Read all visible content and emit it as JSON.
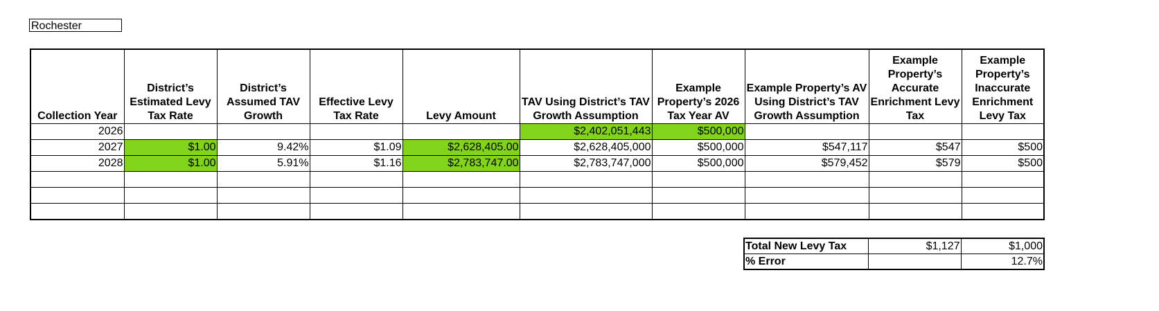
{
  "district_name": "Rochester",
  "fill_color": "#81d41a",
  "headers": [
    "Collection Year",
    "District’s Estimated Levy Tax Rate",
    "District’s Assumed TAV Growth",
    "Effective Levy Tax Rate",
    "Levy Amount",
    "TAV Using District’s TAV Growth Assumption",
    "Example Property’s 2026 Tax Year AV",
    "Example Property’s AV Using District’s TAV Growth Assumption",
    "Example Property’s Accurate Enrichment Levy Tax",
    "Example Property’s Inaccurate Enrichment Levy Tax"
  ],
  "rows": [
    [
      "2026",
      "",
      "",
      "",
      "",
      "$2,402,051,443",
      "$500,000",
      "",
      "",
      ""
    ],
    [
      "2027",
      "$1.00",
      "9.42%",
      "$1.09",
      "$2,628,405.00",
      "$2,628,405,000",
      "$500,000",
      "$547,117",
      "$547",
      "$500"
    ],
    [
      "2028",
      "$1.00",
      "5.91%",
      "$1.16",
      "$2,783,747.00",
      "$2,783,747,000",
      "$500,000",
      "$579,452",
      "$579",
      "$500"
    ],
    [
      "",
      "",
      "",
      "",
      "",
      "",
      "",
      "",
      "",
      ""
    ],
    [
      "",
      "",
      "",
      "",
      "",
      "",
      "",
      "",
      "",
      ""
    ],
    [
      "",
      "",
      "",
      "",
      "",
      "",
      "",
      "",
      "",
      ""
    ]
  ],
  "highlighted": [
    [
      0,
      5
    ],
    [
      0,
      6
    ],
    [
      1,
      1
    ],
    [
      1,
      4
    ],
    [
      2,
      1
    ],
    [
      2,
      4
    ]
  ],
  "summary": [
    {
      "label": "Total New Levy Tax",
      "accurate": "$1,127",
      "inaccurate": "$1,000"
    },
    {
      "label": "% Error",
      "accurate": "",
      "inaccurate": "12.7%"
    }
  ]
}
